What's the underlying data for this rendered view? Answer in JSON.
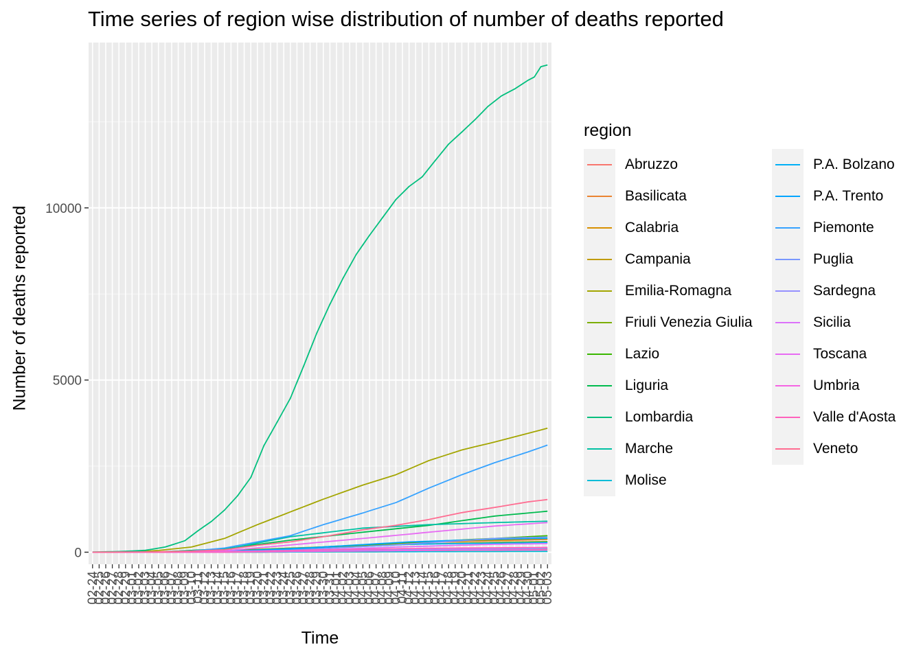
{
  "chart_data": {
    "type": "line",
    "title": "Time series of region wise distribution of number of deaths reported",
    "xlabel": "Time",
    "ylabel": "Number of deaths reported",
    "legend_title": "region",
    "legend_placement": "right",
    "x_start": "2020-02-24",
    "x_end": "2020-05-03",
    "x_tick_format": "MM-DD",
    "ylim": [
      -350,
      14800
    ],
    "y_ticks": [
      0,
      5000,
      10000
    ],
    "y_tick_labels": [
      "0",
      "5000",
      "10000"
    ],
    "series": [
      {
        "name": "Abruzzo",
        "color": "#F8766D",
        "points": [
          [
            "2020-02-24",
            0
          ],
          [
            "2020-03-10",
            0
          ],
          [
            "2020-03-25",
            95
          ],
          [
            "2020-04-10",
            265
          ],
          [
            "2020-05-03",
            370
          ]
        ]
      },
      {
        "name": "Basilicata",
        "color": "#EA8331",
        "points": [
          [
            "2020-02-24",
            0
          ],
          [
            "2020-03-15",
            0
          ],
          [
            "2020-04-01",
            10
          ],
          [
            "2020-04-20",
            22
          ],
          [
            "2020-05-03",
            27
          ]
        ]
      },
      {
        "name": "Calabria",
        "color": "#D89000",
        "points": [
          [
            "2020-02-24",
            0
          ],
          [
            "2020-03-15",
            5
          ],
          [
            "2020-04-01",
            40
          ],
          [
            "2020-04-20",
            80
          ],
          [
            "2020-05-03",
            89
          ]
        ]
      },
      {
        "name": "Campania",
        "color": "#C09B00",
        "points": [
          [
            "2020-02-24",
            0
          ],
          [
            "2020-03-12",
            10
          ],
          [
            "2020-03-28",
            135
          ],
          [
            "2020-04-15",
            300
          ],
          [
            "2020-05-03",
            385
          ]
        ]
      },
      {
        "name": "Emilia-Romagna",
        "color": "#A3A500",
        "points": [
          [
            "2020-02-24",
            0
          ],
          [
            "2020-03-01",
            5
          ],
          [
            "2020-03-05",
            50
          ],
          [
            "2020-03-10",
            150
          ],
          [
            "2020-03-15",
            400
          ],
          [
            "2020-03-20",
            800
          ],
          [
            "2020-03-25",
            1170
          ],
          [
            "2020-03-30",
            1540
          ],
          [
            "2020-04-05",
            1950
          ],
          [
            "2020-04-10",
            2250
          ],
          [
            "2020-04-15",
            2660
          ],
          [
            "2020-04-20",
            2970
          ],
          [
            "2020-04-25",
            3200
          ],
          [
            "2020-04-30",
            3450
          ],
          [
            "2020-05-03",
            3600
          ]
        ]
      },
      {
        "name": "Friuli Venezia Giulia",
        "color": "#7CAE00",
        "points": [
          [
            "2020-02-24",
            0
          ],
          [
            "2020-03-10",
            10
          ],
          [
            "2020-03-25",
            120
          ],
          [
            "2020-04-10",
            220
          ],
          [
            "2020-04-25",
            285
          ],
          [
            "2020-05-03",
            310
          ]
        ]
      },
      {
        "name": "Lazio",
        "color": "#39B600",
        "points": [
          [
            "2020-02-24",
            0
          ],
          [
            "2020-03-10",
            5
          ],
          [
            "2020-03-25",
            100
          ],
          [
            "2020-04-10",
            265
          ],
          [
            "2020-04-25",
            400
          ],
          [
            "2020-05-03",
            480
          ]
        ]
      },
      {
        "name": "Liguria",
        "color": "#00BB4E",
        "points": [
          [
            "2020-02-24",
            0
          ],
          [
            "2020-03-05",
            5
          ],
          [
            "2020-03-15",
            100
          ],
          [
            "2020-03-25",
            350
          ],
          [
            "2020-04-05",
            580
          ],
          [
            "2020-04-15",
            780
          ],
          [
            "2020-04-25",
            1050
          ],
          [
            "2020-05-03",
            1190
          ]
        ]
      },
      {
        "name": "Lombardia",
        "color": "#00BF7D",
        "points": [
          [
            "2020-02-24",
            6
          ],
          [
            "2020-02-28",
            20
          ],
          [
            "2020-03-03",
            55
          ],
          [
            "2020-03-06",
            150
          ],
          [
            "2020-03-09",
            333
          ],
          [
            "2020-03-11",
            625
          ],
          [
            "2020-03-13",
            890
          ],
          [
            "2020-03-15",
            1220
          ],
          [
            "2020-03-17",
            1640
          ],
          [
            "2020-03-19",
            2170
          ],
          [
            "2020-03-21",
            3100
          ],
          [
            "2020-03-23",
            3780
          ],
          [
            "2020-03-25",
            4470
          ],
          [
            "2020-03-27",
            5400
          ],
          [
            "2020-03-29",
            6360
          ],
          [
            "2020-03-31",
            7200
          ],
          [
            "2020-04-02",
            7960
          ],
          [
            "2020-04-04",
            8650
          ],
          [
            "2020-04-06",
            9200
          ],
          [
            "2020-04-08",
            9720
          ],
          [
            "2020-04-10",
            10240
          ],
          [
            "2020-04-12",
            10620
          ],
          [
            "2020-04-14",
            10900
          ],
          [
            "2020-04-16",
            11380
          ],
          [
            "2020-04-18",
            11850
          ],
          [
            "2020-04-20",
            12200
          ],
          [
            "2020-04-22",
            12560
          ],
          [
            "2020-04-24",
            12950
          ],
          [
            "2020-04-26",
            13250
          ],
          [
            "2020-04-28",
            13450
          ],
          [
            "2020-04-30",
            13700
          ],
          [
            "2020-05-01",
            13800
          ],
          [
            "2020-05-02",
            14100
          ],
          [
            "2020-05-03",
            14150
          ]
        ]
      },
      {
        "name": "Marche",
        "color": "#00C1A3",
        "points": [
          [
            "2020-02-24",
            0
          ],
          [
            "2020-03-05",
            3
          ],
          [
            "2020-03-15",
            80
          ],
          [
            "2020-03-25",
            450
          ],
          [
            "2020-04-05",
            700
          ],
          [
            "2020-04-15",
            800
          ],
          [
            "2020-04-25",
            860
          ],
          [
            "2020-05-03",
            900
          ]
        ]
      },
      {
        "name": "Molise",
        "color": "#00BCD8",
        "points": [
          [
            "2020-02-24",
            0
          ],
          [
            "2020-03-15",
            0
          ],
          [
            "2020-04-05",
            13
          ],
          [
            "2020-05-03",
            22
          ]
        ]
      },
      {
        "name": "P.A. Bolzano",
        "color": "#00B0F6",
        "points": [
          [
            "2020-02-24",
            0
          ],
          [
            "2020-03-12",
            0
          ],
          [
            "2020-03-28",
            95
          ],
          [
            "2020-04-12",
            230
          ],
          [
            "2020-05-03",
            285
          ]
        ]
      },
      {
        "name": "P.A. Trento",
        "color": "#00A5FF",
        "points": [
          [
            "2020-02-24",
            0
          ],
          [
            "2020-03-12",
            1
          ],
          [
            "2020-03-28",
            130
          ],
          [
            "2020-04-12",
            300
          ],
          [
            "2020-04-25",
            380
          ],
          [
            "2020-05-03",
            405
          ]
        ]
      },
      {
        "name": "Piemonte",
        "color": "#35A2FF",
        "points": [
          [
            "2020-02-24",
            0
          ],
          [
            "2020-03-05",
            5
          ],
          [
            "2020-03-10",
            35
          ],
          [
            "2020-03-15",
            120
          ],
          [
            "2020-03-20",
            300
          ],
          [
            "2020-03-25",
            480
          ],
          [
            "2020-03-30",
            800
          ],
          [
            "2020-04-05",
            1140
          ],
          [
            "2020-04-10",
            1440
          ],
          [
            "2020-04-15",
            1860
          ],
          [
            "2020-04-20",
            2250
          ],
          [
            "2020-04-25",
            2600
          ],
          [
            "2020-04-30",
            2910
          ],
          [
            "2020-05-03",
            3110
          ]
        ]
      },
      {
        "name": "Puglia",
        "color": "#7997FF",
        "points": [
          [
            "2020-02-24",
            0
          ],
          [
            "2020-03-10",
            5
          ],
          [
            "2020-03-25",
            60
          ],
          [
            "2020-04-10",
            215
          ],
          [
            "2020-04-25",
            400
          ],
          [
            "2020-05-03",
            440
          ]
        ]
      },
      {
        "name": "Sardegna",
        "color": "#9590FF",
        "points": [
          [
            "2020-02-24",
            0
          ],
          [
            "2020-03-15",
            2
          ],
          [
            "2020-04-01",
            50
          ],
          [
            "2020-04-20",
            90
          ],
          [
            "2020-05-03",
            110
          ]
        ]
      },
      {
        "name": "Sicilia",
        "color": "#DC71FA",
        "points": [
          [
            "2020-02-24",
            0
          ],
          [
            "2020-03-10",
            2
          ],
          [
            "2020-03-25",
            40
          ],
          [
            "2020-04-10",
            150
          ],
          [
            "2020-04-25",
            230
          ],
          [
            "2020-05-03",
            250
          ]
        ]
      },
      {
        "name": "Toscana",
        "color": "#E76BF3",
        "points": [
          [
            "2020-02-24",
            0
          ],
          [
            "2020-03-05",
            1
          ],
          [
            "2020-03-15",
            40
          ],
          [
            "2020-03-25",
            210
          ],
          [
            "2020-04-05",
            400
          ],
          [
            "2020-04-15",
            580
          ],
          [
            "2020-04-25",
            760
          ],
          [
            "2020-05-03",
            860
          ]
        ]
      },
      {
        "name": "Umbria",
        "color": "#F564E3",
        "points": [
          [
            "2020-02-24",
            0
          ],
          [
            "2020-03-15",
            2
          ],
          [
            "2020-04-01",
            30
          ],
          [
            "2020-04-20",
            60
          ],
          [
            "2020-05-03",
            66
          ]
        ]
      },
      {
        "name": "Valle d'Aosta",
        "color": "#FF62BC",
        "points": [
          [
            "2020-02-24",
            0
          ],
          [
            "2020-03-15",
            3
          ],
          [
            "2020-03-30",
            70
          ],
          [
            "2020-04-15",
            115
          ],
          [
            "2020-05-03",
            140
          ]
        ]
      },
      {
        "name": "Veneto",
        "color": "#FF6C91",
        "points": [
          [
            "2020-02-24",
            1
          ],
          [
            "2020-03-05",
            10
          ],
          [
            "2020-03-10",
            30
          ],
          [
            "2020-03-15",
            70
          ],
          [
            "2020-03-20",
            200
          ],
          [
            "2020-03-25",
            300
          ],
          [
            "2020-03-30",
            450
          ],
          [
            "2020-04-05",
            650
          ],
          [
            "2020-04-10",
            780
          ],
          [
            "2020-04-15",
            950
          ],
          [
            "2020-04-20",
            1150
          ],
          [
            "2020-04-25",
            1300
          ],
          [
            "2020-04-30",
            1460
          ],
          [
            "2020-05-03",
            1530
          ]
        ]
      }
    ]
  }
}
